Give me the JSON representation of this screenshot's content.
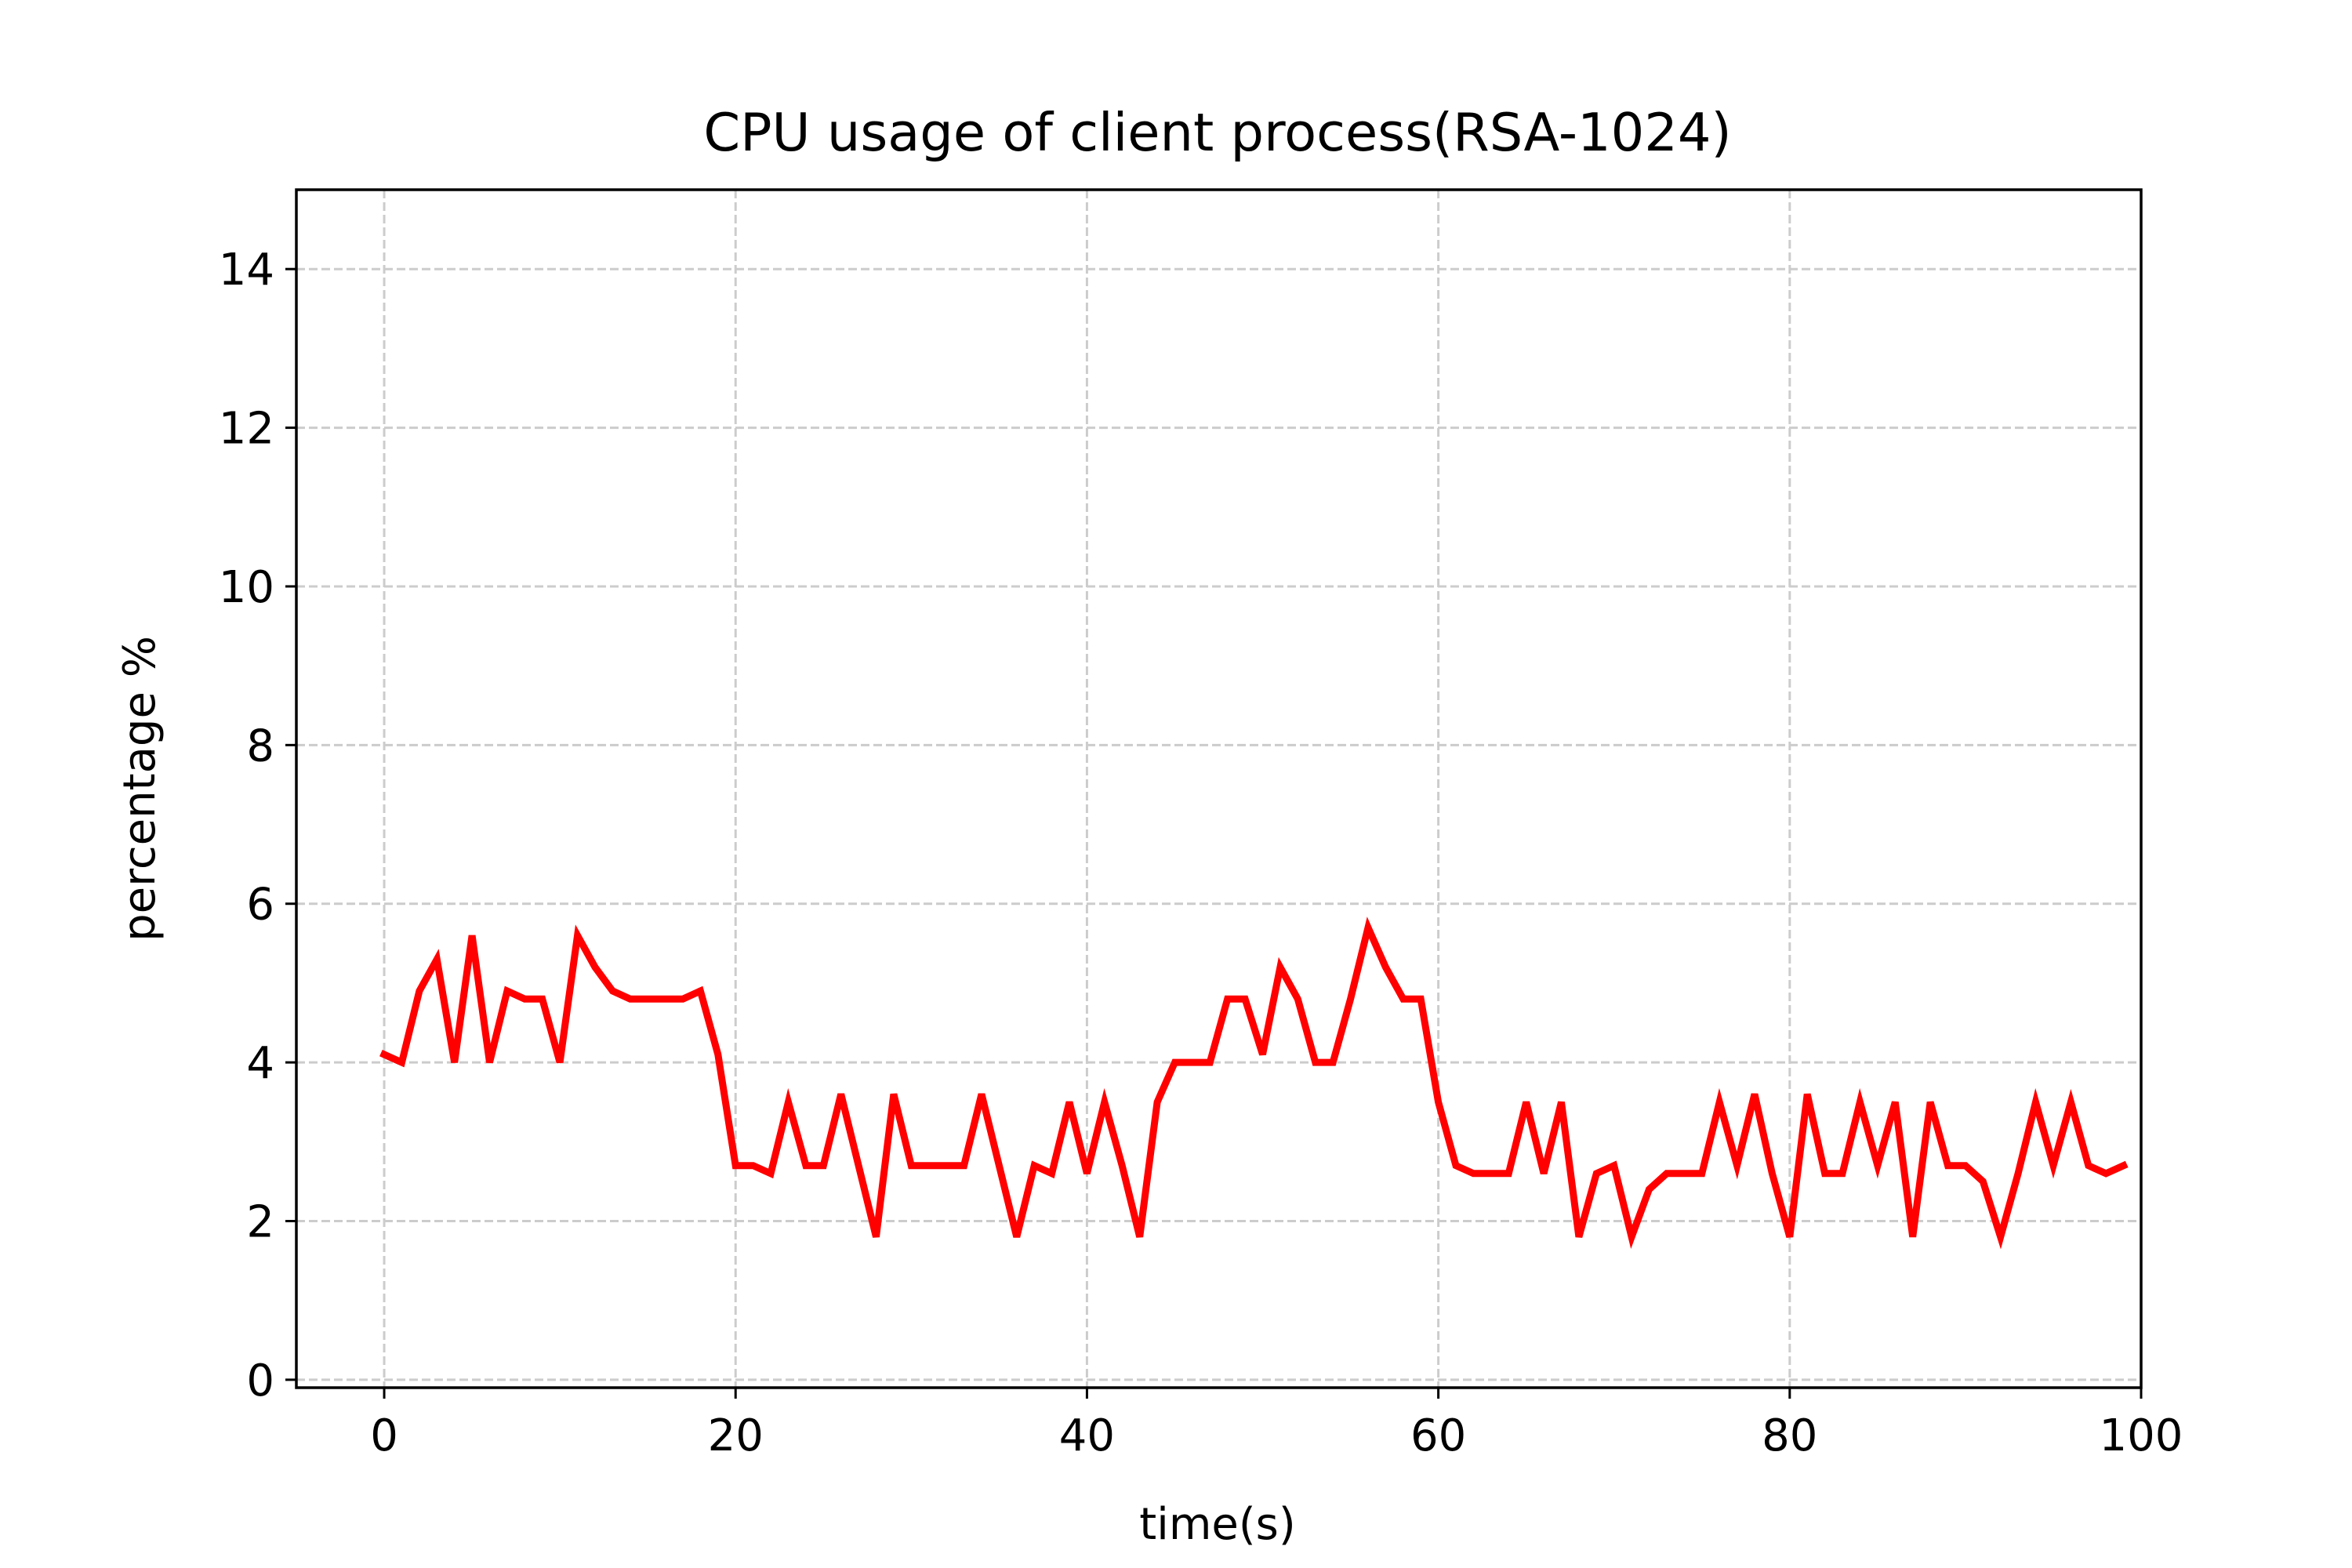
{
  "chart_data": {
    "type": "line",
    "title": "CPU usage of client process(RSA-1024)",
    "xlabel": "time(s)",
    "ylabel": "percentage %",
    "xlim": [
      -5,
      100
    ],
    "ylim": [
      -0.1,
      15
    ],
    "xticks": [
      0,
      20,
      40,
      60,
      80,
      100
    ],
    "xtick_labels": [
      "0",
      "20",
      "40",
      "60",
      "80",
      "100"
    ],
    "yticks": [
      0,
      2,
      4,
      6,
      8,
      10,
      12,
      14
    ],
    "ytick_labels": [
      "0",
      "2",
      "4",
      "6",
      "8",
      "10",
      "12",
      "14"
    ],
    "grid": true,
    "legend": null,
    "series": [
      {
        "color": "#ff0000",
        "x": [
          0,
          1,
          2,
          3,
          4,
          5,
          6,
          7,
          8,
          9,
          10,
          11,
          12,
          13,
          14,
          15,
          16,
          17,
          18,
          19,
          20,
          21,
          22,
          23,
          24,
          25,
          26,
          27,
          28,
          29,
          30,
          31,
          32,
          33,
          34,
          35,
          36,
          37,
          38,
          39,
          40,
          41,
          42,
          43,
          44,
          45,
          46,
          47,
          48,
          49,
          50,
          51,
          52,
          53,
          54,
          55,
          56,
          57,
          58,
          59,
          60,
          61,
          62,
          63,
          64,
          65,
          66,
          67,
          68,
          69,
          70,
          71,
          72,
          73,
          74,
          75,
          76,
          77,
          78,
          79,
          80,
          81,
          82,
          83,
          84,
          85,
          86,
          87,
          88,
          89,
          90,
          91,
          92,
          93,
          94,
          95,
          96,
          97,
          98,
          99
        ],
        "y": [
          4.1,
          4.0,
          4.9,
          5.3,
          4.0,
          5.6,
          4.0,
          4.9,
          4.8,
          4.8,
          4.0,
          5.6,
          5.2,
          4.9,
          4.8,
          4.8,
          4.8,
          4.8,
          4.9,
          4.1,
          2.7,
          2.7,
          2.6,
          3.5,
          2.7,
          2.7,
          3.6,
          2.7,
          1.8,
          3.6,
          2.7,
          2.7,
          2.7,
          2.7,
          3.6,
          2.7,
          1.8,
          2.7,
          2.6,
          3.5,
          2.6,
          3.5,
          2.7,
          1.8,
          3.5,
          4.0,
          4.0,
          4.0,
          4.8,
          4.8,
          4.1,
          5.2,
          4.8,
          4.0,
          4.0,
          4.8,
          5.7,
          5.2,
          4.8,
          4.8,
          3.5,
          2.7,
          2.6,
          2.6,
          2.6,
          3.5,
          2.6,
          3.5,
          1.8,
          2.6,
          2.7,
          1.8,
          2.4,
          2.6,
          2.6,
          2.6,
          3.5,
          2.7,
          3.6,
          2.6,
          1.8,
          3.6,
          2.6,
          2.6,
          3.5,
          2.7,
          3.5,
          1.8,
          3.5,
          2.7,
          2.7,
          2.5,
          1.8,
          2.6,
          3.5,
          2.7,
          3.5,
          2.7,
          2.6,
          2.7
        ]
      }
    ]
  }
}
